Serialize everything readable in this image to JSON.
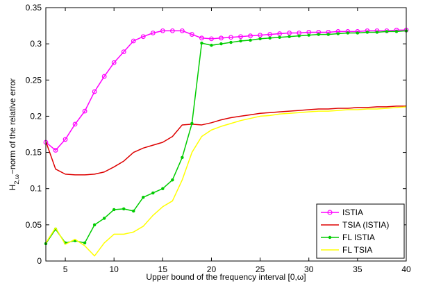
{
  "chart_data": {
    "type": "line",
    "title": "",
    "xlabel": "Upper bound of the frequency interval [0,ω]",
    "ylabel": {
      "prefix": "H",
      "subscript": "2,ω",
      "suffix": "−norm of the relative error"
    },
    "xlim": [
      3,
      40
    ],
    "ylim": [
      0,
      0.35
    ],
    "x_ticks": [
      5,
      10,
      15,
      20,
      25,
      30,
      35,
      40
    ],
    "x_tick_labels": [
      "5",
      "10",
      "15",
      "20",
      "25",
      "30",
      "35",
      "40"
    ],
    "y_ticks": [
      0,
      0.05,
      0.1,
      0.15,
      0.2,
      0.25,
      0.3,
      0.35
    ],
    "y_tick_labels": [
      "0",
      "0.05",
      "0.1",
      "0.15",
      "0.2",
      "0.25",
      "0.3",
      "0.35"
    ],
    "grid": false,
    "legend_position": "bottom-right",
    "x": [
      3,
      4,
      5,
      6,
      7,
      8,
      9,
      10,
      11,
      12,
      13,
      14,
      15,
      16,
      17,
      18,
      19,
      20,
      21,
      22,
      23,
      24,
      25,
      26,
      27,
      28,
      29,
      30,
      31,
      32,
      33,
      34,
      35,
      36,
      37,
      38,
      39,
      40
    ],
    "series": [
      {
        "name": "ISTIA",
        "color": "#ff00ff",
        "marker": "circle",
        "values": [
          0.164,
          0.153,
          0.168,
          0.189,
          0.207,
          0.234,
          0.255,
          0.274,
          0.289,
          0.304,
          0.31,
          0.315,
          0.318,
          0.318,
          0.318,
          0.313,
          0.308,
          0.307,
          0.308,
          0.309,
          0.31,
          0.311,
          0.312,
          0.313,
          0.314,
          0.315,
          0.315,
          0.316,
          0.316,
          0.316,
          0.317,
          0.317,
          0.317,
          0.318,
          0.318,
          0.318,
          0.319,
          0.319
        ]
      },
      {
        "name": "TSIA (ISTIA)",
        "color": "#dd0000",
        "marker": "none",
        "values": [
          0.165,
          0.127,
          0.12,
          0.119,
          0.119,
          0.12,
          0.123,
          0.13,
          0.138,
          0.15,
          0.156,
          0.16,
          0.164,
          0.172,
          0.188,
          0.189,
          0.188,
          0.191,
          0.195,
          0.198,
          0.2,
          0.202,
          0.204,
          0.205,
          0.206,
          0.207,
          0.208,
          0.209,
          0.21,
          0.21,
          0.211,
          0.211,
          0.212,
          0.212,
          0.213,
          0.213,
          0.214,
          0.214
        ]
      },
      {
        "name": "FL ISTIA",
        "color": "#00cc00",
        "marker": "dot",
        "values": [
          0.024,
          0.044,
          0.025,
          0.028,
          0.025,
          0.05,
          0.059,
          0.071,
          0.072,
          0.069,
          0.088,
          0.094,
          0.1,
          0.112,
          0.143,
          0.19,
          0.301,
          0.298,
          0.3,
          0.302,
          0.304,
          0.305,
          0.307,
          0.308,
          0.309,
          0.31,
          0.311,
          0.312,
          0.313,
          0.313,
          0.314,
          0.315,
          0.315,
          0.316,
          0.316,
          0.317,
          0.317,
          0.318
        ]
      },
      {
        "name": "FL TSIA",
        "color": "#ffff00",
        "marker": "none",
        "values": [
          0.025,
          0.046,
          0.023,
          0.03,
          0.021,
          0.007,
          0.025,
          0.037,
          0.037,
          0.04,
          0.048,
          0.063,
          0.075,
          0.083,
          0.112,
          0.15,
          0.172,
          0.181,
          0.186,
          0.19,
          0.194,
          0.197,
          0.2,
          0.201,
          0.203,
          0.204,
          0.205,
          0.206,
          0.207,
          0.207,
          0.208,
          0.209,
          0.209,
          0.21,
          0.21,
          0.211,
          0.212,
          0.213
        ]
      }
    ]
  }
}
